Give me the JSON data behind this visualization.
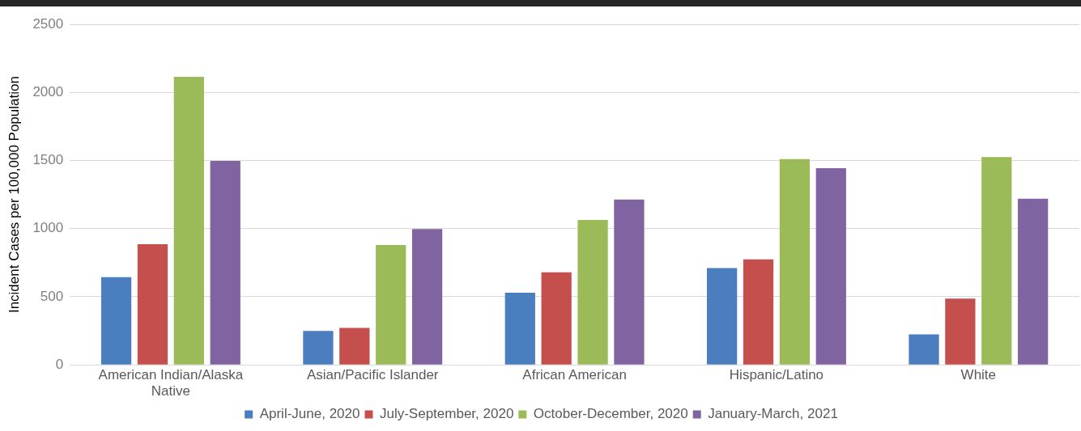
{
  "chart_data": {
    "type": "bar",
    "ylabel": "Incident Cases per 100,000 Population",
    "categories": [
      "American Indian/Alaska Native",
      "Asian/Pacific Islander",
      "African American",
      "Hispanic/Latino",
      "White"
    ],
    "series": [
      {
        "name": "April-June, 2020",
        "color": "#4a7ebf",
        "values": [
          643,
          249,
          529,
          711,
          224
        ]
      },
      {
        "name": "July-September, 2020",
        "color": "#c44f4d",
        "values": [
          886,
          271,
          679,
          774,
          486
        ]
      },
      {
        "name": "October-December, 2020",
        "color": "#9bbb59",
        "values": [
          2114,
          880,
          1064,
          1510,
          1525
        ]
      },
      {
        "name": "January-March, 2021",
        "color": "#8064a2",
        "values": [
          1497,
          997,
          1214,
          1444,
          1220
        ]
      }
    ],
    "ylim": [
      0,
      2500
    ],
    "yticks": [
      0,
      500,
      1000,
      1500,
      2000,
      2500
    ],
    "grid": "y",
    "legend": "bottom"
  }
}
